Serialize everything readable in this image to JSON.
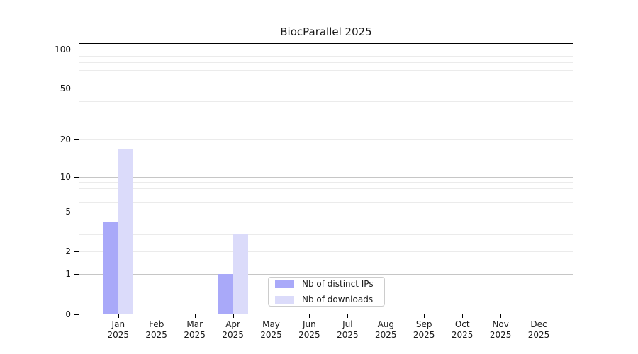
{
  "figure": {
    "background": "#ffffff"
  },
  "chart_data": {
    "type": "bar",
    "title": "BiocParallel 2025",
    "categories": [
      "Jan",
      "Feb",
      "Mar",
      "Apr",
      "May",
      "Jun",
      "Jul",
      "Aug",
      "Sep",
      "Oct",
      "Nov",
      "Dec"
    ],
    "category_year": "2025",
    "series": [
      {
        "name": "Nb of distinct IPs",
        "color": "#a9a9f9",
        "values": [
          4,
          0,
          0,
          1,
          0,
          0,
          0,
          0,
          0,
          0,
          0,
          0
        ]
      },
      {
        "name": "Nb of downloads",
        "color": "#dbdbfa",
        "values": [
          17,
          0,
          0,
          3,
          0,
          0,
          0,
          0,
          0,
          0,
          0,
          0
        ]
      }
    ],
    "xlabel": "",
    "ylabel": "",
    "y_scale": "log10(1+y)",
    "ylim": [
      0,
      112
    ],
    "y_ticks": [
      0,
      1,
      2,
      5,
      10,
      20,
      50,
      100
    ],
    "y_tick_labels": [
      "0",
      "1",
      "2",
      "5",
      "10",
      "20",
      "50",
      "100"
    ],
    "y_gridlines_major": [
      1,
      10,
      100
    ],
    "y_gridlines_minor": [
      2,
      3,
      4,
      5,
      6,
      7,
      8,
      9,
      20,
      30,
      40,
      50,
      60,
      70,
      80,
      90
    ],
    "grid": true,
    "legend_position": "inside bottom-center",
    "colors": {
      "major_grid": "#c6c6c6",
      "minor_grid": "#ebebeb",
      "axis": "#000000",
      "text": "#1a1a1a"
    }
  }
}
